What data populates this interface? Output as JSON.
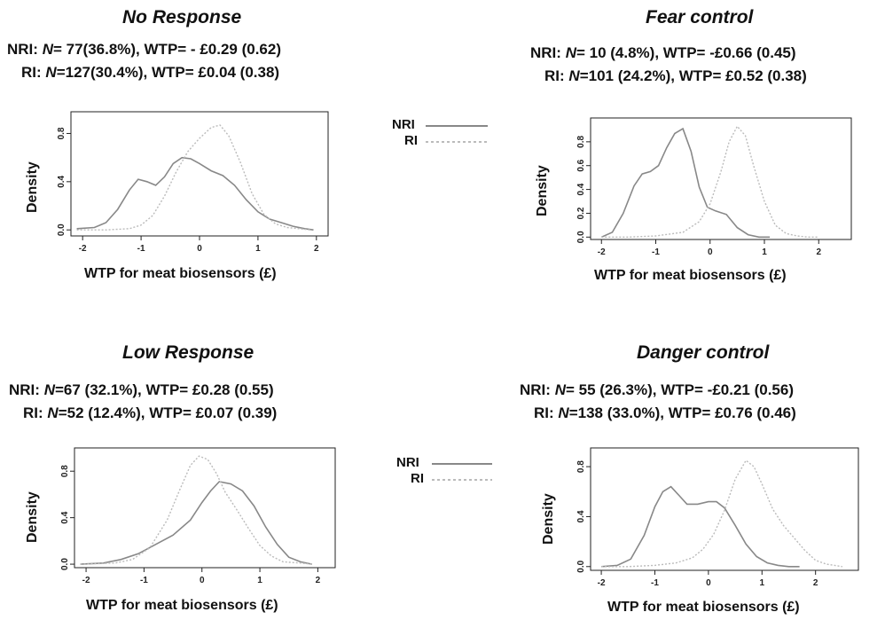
{
  "colors": {
    "nri": "#888888",
    "ri": "#bbbbbb",
    "axis": "#222222"
  },
  "legend": {
    "nri": "NRI",
    "ri": "RI"
  },
  "panels": [
    {
      "title": "No Response",
      "nri": {
        "label": "NRI:",
        "n_sym": "N",
        "n_val": "= 77(36.8%),",
        "wtp": "WTP= - £0.29 (0.62)"
      },
      "ri": {
        "label": "RI:",
        "n_sym": "N",
        "n_val": "=127(30.4%),",
        "wtp": "WTP=  £0.04 (0.38)"
      },
      "xlabel": "WTP for meat biosensors (£)",
      "ylabel": "Density"
    },
    {
      "title": "Fear control",
      "nri": {
        "label": "NRI:",
        "n_sym": "N",
        "n_val": "= 10  (4.8%),",
        "wtp": "WTP= -£0.66 (0.45)"
      },
      "ri": {
        "label": "RI:",
        "n_sym": "N",
        "n_val": "=101 (24.2%),",
        "wtp": "WTP=  £0.52 (0.38)"
      },
      "xlabel": "WTP for meat biosensors (£)",
      "ylabel": "Density"
    },
    {
      "title": "Low Response",
      "nri": {
        "label": "NRI:",
        "n_sym": "N",
        "n_val": "=67 (32.1%),",
        "wtp": "WTP= £0.28 (0.55)"
      },
      "ri": {
        "label": "RI:",
        "n_sym": "N",
        "n_val": "=52 (12.4%),",
        "wtp": "WTP= £0.07 (0.39)"
      },
      "xlabel": "WTP for meat biosensors (£)",
      "ylabel": "Density"
    },
    {
      "title": "Danger control",
      "nri": {
        "label": "NRI:",
        "n_sym": "N",
        "n_val": "= 55 (26.3%),",
        "wtp": "WTP= -£0.21 (0.56)"
      },
      "ri": {
        "label": "RI:",
        "n_sym": "N",
        "n_val": "=138 (33.0%),",
        "wtp": "WTP=  £0.76 (0.46)"
      },
      "xlabel": "WTP for meat biosensors (£)",
      "ylabel": "Density"
    }
  ],
  "chart_data": [
    {
      "type": "line",
      "xlim": [
        -2.2,
        2.2
      ],
      "ylim": [
        -0.05,
        0.98
      ],
      "xticks": [
        "-2",
        "-1",
        "0",
        "1",
        "2"
      ],
      "yticks": [
        "0.0",
        "0.4",
        "0.8"
      ],
      "xlabel": "WTP for meat biosensors (£)",
      "ylabel": "Density",
      "series": [
        {
          "name": "NRI",
          "style": "solid",
          "x": [
            -2.1,
            -1.8,
            -1.6,
            -1.4,
            -1.2,
            -1.05,
            -0.9,
            -0.75,
            -0.6,
            -0.45,
            -0.3,
            -0.15,
            0.0,
            0.2,
            0.4,
            0.6,
            0.8,
            1.0,
            1.2,
            1.4,
            1.6,
            1.8,
            1.95
          ],
          "y": [
            0.01,
            0.02,
            0.06,
            0.17,
            0.33,
            0.42,
            0.4,
            0.37,
            0.44,
            0.55,
            0.6,
            0.59,
            0.55,
            0.49,
            0.45,
            0.37,
            0.25,
            0.15,
            0.09,
            0.06,
            0.03,
            0.01,
            0.0
          ]
        },
        {
          "name": "RI",
          "style": "dotted",
          "x": [
            -2.1,
            -1.6,
            -1.2,
            -1.0,
            -0.8,
            -0.6,
            -0.4,
            -0.2,
            0.0,
            0.2,
            0.35,
            0.5,
            0.7,
            0.9,
            1.1,
            1.3,
            1.5,
            1.7,
            1.9
          ],
          "y": [
            0.0,
            0.0,
            0.01,
            0.04,
            0.12,
            0.28,
            0.48,
            0.65,
            0.76,
            0.85,
            0.87,
            0.78,
            0.56,
            0.3,
            0.13,
            0.05,
            0.02,
            0.01,
            0.0
          ]
        }
      ]
    },
    {
      "type": "line",
      "xlim": [
        -2.2,
        2.6
      ],
      "ylim": [
        -0.02,
        1.0
      ],
      "xticks": [
        "-2",
        "-1",
        "0",
        "1",
        "2"
      ],
      "yticks": [
        "0.0",
        "0.2",
        "0.4",
        "0.6",
        "0.8"
      ],
      "xlabel": "WTP for meat biosensors (£)",
      "ylabel": "Density",
      "series": [
        {
          "name": "NRI",
          "style": "solid",
          "x": [
            -2.0,
            -1.8,
            -1.6,
            -1.4,
            -1.25,
            -1.1,
            -0.95,
            -0.8,
            -0.65,
            -0.5,
            -0.35,
            -0.2,
            -0.05,
            0.1,
            0.3,
            0.5,
            0.7,
            0.9,
            1.1
          ],
          "y": [
            0.0,
            0.04,
            0.2,
            0.43,
            0.53,
            0.55,
            0.6,
            0.75,
            0.87,
            0.91,
            0.72,
            0.42,
            0.25,
            0.22,
            0.19,
            0.08,
            0.02,
            0.0,
            0.0
          ]
        },
        {
          "name": "RI",
          "style": "dotted",
          "x": [
            -2.0,
            -1.5,
            -1.0,
            -0.5,
            -0.2,
            0.0,
            0.2,
            0.35,
            0.5,
            0.65,
            0.8,
            1.0,
            1.2,
            1.4,
            1.6,
            1.8,
            2.0
          ],
          "y": [
            0.0,
            0.0,
            0.01,
            0.04,
            0.13,
            0.28,
            0.55,
            0.8,
            0.93,
            0.85,
            0.6,
            0.3,
            0.1,
            0.03,
            0.01,
            0.0,
            0.0
          ]
        }
      ]
    },
    {
      "type": "line",
      "xlim": [
        -2.2,
        2.3
      ],
      "ylim": [
        -0.03,
        1.0
      ],
      "xticks": [
        "-2",
        "-1",
        "0",
        "1",
        "2"
      ],
      "yticks": [
        "0.0",
        "0.4",
        "0.8"
      ],
      "xlabel": "WTP for meat biosensors (£)",
      "ylabel": "Density",
      "series": [
        {
          "name": "NRI",
          "style": "solid",
          "x": [
            -2.1,
            -1.7,
            -1.4,
            -1.1,
            -0.8,
            -0.5,
            -0.2,
            0.0,
            0.15,
            0.3,
            0.5,
            0.7,
            0.9,
            1.1,
            1.3,
            1.5,
            1.7,
            1.9
          ],
          "y": [
            0.0,
            0.01,
            0.04,
            0.09,
            0.17,
            0.25,
            0.38,
            0.53,
            0.63,
            0.71,
            0.69,
            0.63,
            0.5,
            0.32,
            0.17,
            0.06,
            0.02,
            0.0
          ]
        },
        {
          "name": "RI",
          "style": "dotted",
          "x": [
            -2.1,
            -1.5,
            -1.2,
            -0.9,
            -0.6,
            -0.4,
            -0.2,
            -0.05,
            0.1,
            0.25,
            0.4,
            0.6,
            0.8,
            1.0,
            1.2,
            1.4,
            1.7,
            1.9
          ],
          "y": [
            0.0,
            0.01,
            0.04,
            0.14,
            0.38,
            0.62,
            0.85,
            0.93,
            0.9,
            0.78,
            0.62,
            0.47,
            0.31,
            0.16,
            0.07,
            0.02,
            0.01,
            0.0
          ]
        }
      ]
    },
    {
      "type": "line",
      "xlim": [
        -2.2,
        2.8
      ],
      "ylim": [
        -0.03,
        0.95
      ],
      "xticks": [
        "-2",
        "-1",
        "0",
        "1",
        "2"
      ],
      "yticks": [
        "0.0",
        "0.4",
        "0.8"
      ],
      "xlabel": "WTP for meat biosensors (£)",
      "ylabel": "Density",
      "series": [
        {
          "name": "NRI",
          "style": "solid",
          "x": [
            -2.0,
            -1.7,
            -1.45,
            -1.2,
            -1.0,
            -0.85,
            -0.7,
            -0.55,
            -0.4,
            -0.2,
            0.0,
            0.15,
            0.3,
            0.5,
            0.7,
            0.9,
            1.1,
            1.3,
            1.5,
            1.7
          ],
          "y": [
            0.0,
            0.01,
            0.06,
            0.25,
            0.48,
            0.6,
            0.64,
            0.57,
            0.5,
            0.5,
            0.52,
            0.52,
            0.47,
            0.33,
            0.18,
            0.08,
            0.03,
            0.01,
            0.0,
            0.0
          ]
        },
        {
          "name": "RI",
          "style": "dotted",
          "x": [
            -2.0,
            -1.5,
            -1.0,
            -0.6,
            -0.3,
            -0.1,
            0.1,
            0.3,
            0.5,
            0.7,
            0.85,
            1.0,
            1.2,
            1.4,
            1.6,
            1.8,
            2.0,
            2.2,
            2.5
          ],
          "y": [
            0.0,
            0.0,
            0.01,
            0.03,
            0.07,
            0.14,
            0.26,
            0.45,
            0.7,
            0.85,
            0.8,
            0.66,
            0.46,
            0.33,
            0.23,
            0.13,
            0.05,
            0.02,
            0.0
          ]
        }
      ]
    }
  ]
}
